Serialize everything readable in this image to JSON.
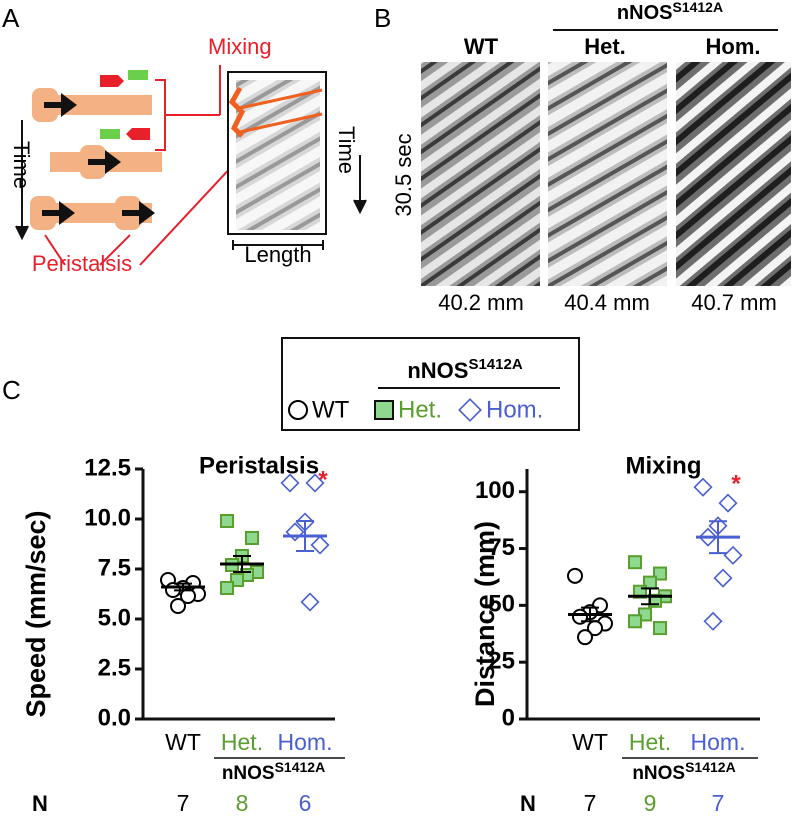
{
  "panel_a": {
    "label": "A",
    "mixing": "Mixing",
    "time_left": "Time",
    "peristalsis": "Peristalsis",
    "time_right": "Time",
    "length": "Length"
  },
  "panel_b": {
    "label": "B",
    "group": "nNOS",
    "group_sup": "S1412A",
    "columns": [
      "WT",
      "Het.",
      "Hom."
    ],
    "time": "30.5 sec",
    "lengths": [
      "40.2 mm",
      "40.4 mm",
      "40.7 mm"
    ]
  },
  "panel_c": {
    "label": "C",
    "legend_title": "nNOS",
    "legend_title_sup": "S1412A",
    "n_label": "N"
  },
  "chart_data": [
    {
      "type": "strip",
      "title": "Peristalsis",
      "ylabel": "Speed (mm/sec)",
      "categories": [
        "WT",
        "Het.",
        "Hom."
      ],
      "group_label": "nNOS",
      "group_label_sup": "S1412A",
      "n": [
        7,
        8,
        6
      ],
      "annotation": "*",
      "ylim": [
        0,
        12.5
      ],
      "yticks": [
        {
          "value": 0,
          "label": "0.0"
        },
        2.5,
        {
          "value": 5,
          "label": "5.0"
        },
        7.5,
        {
          "value": 10,
          "label": "10.0"
        },
        12.5
      ],
      "series": [
        {
          "name": "WT",
          "color": "#000000",
          "fill": "#ffffff",
          "line_color": "#000000",
          "marker": "circle",
          "values": [
            6.95,
            6.8,
            6.55,
            6.45,
            6.25,
            6.15,
            5.65
          ],
          "mean": 6.6,
          "sem": 0.17
        },
        {
          "name": "Het.",
          "color": "#5a9e2e",
          "fill": "#8fd88f",
          "line_color": "#000000",
          "marker": "square",
          "values": [
            9.9,
            9.05,
            8.15,
            7.7,
            7.35,
            7.2,
            6.95,
            6.55
          ],
          "mean": 7.75,
          "sem": 0.4
        },
        {
          "name": "Hom.",
          "color": "#4a5fd0",
          "fill": "#ffffff",
          "line_color": "#4a5fd0",
          "marker": "diamond",
          "values": [
            11.8,
            11.8,
            9.85,
            9.35,
            8.7,
            5.85
          ],
          "mean": 9.15,
          "sem": 0.75
        }
      ]
    },
    {
      "type": "strip",
      "title": "Mixing",
      "ylabel": "Distance  (mm)",
      "categories": [
        "WT",
        "Het.",
        "Hom."
      ],
      "group_label": "nNOS",
      "group_label_sup": "S1412A",
      "n": [
        7,
        9,
        7
      ],
      "annotation": "*",
      "ylim": [
        0,
        110
      ],
      "yticks": [
        0,
        25,
        50,
        75,
        100
      ],
      "series": [
        {
          "color": "#000000",
          "fill": "#ffffff",
          "line_color": "#000000",
          "marker": "circle",
          "values": [
            63,
            50,
            47,
            45,
            42,
            40,
            36
          ],
          "mean": 46,
          "sem": 3
        },
        {
          "color": "#5a9e2e",
          "fill": "#8fd88f",
          "line_color": "#000000",
          "marker": "square",
          "values": [
            69,
            64,
            60,
            56,
            54,
            52,
            46,
            43,
            40
          ],
          "mean": 54,
          "sem": 3.5
        },
        {
          "color": "#4a5fd0",
          "fill": "#ffffff",
          "line_color": "#4a5fd0",
          "marker": "diamond",
          "values": [
            102,
            95,
            85,
            80,
            72,
            62,
            43
          ],
          "mean": 80,
          "sem": 7
        }
      ]
    }
  ]
}
